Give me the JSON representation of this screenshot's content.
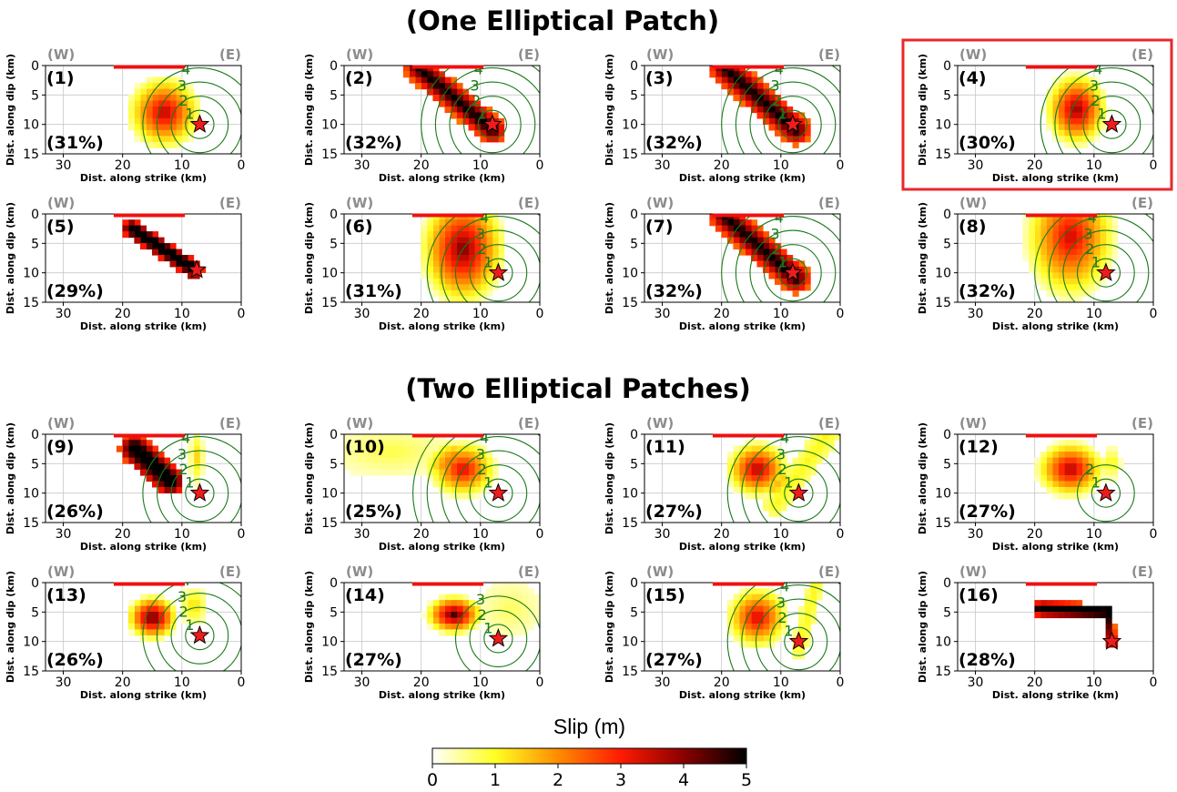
{
  "figure": {
    "section_titles": [
      "(One Elliptical Patch)",
      "(Two Elliptical Patches)"
    ],
    "highlight_color": "#e8282b",
    "colorbar": {
      "label": "Slip (m)",
      "ticks": [
        0,
        1,
        2,
        3,
        4,
        5
      ],
      "colors": [
        "#ffffff",
        "#ffff22",
        "#ff8c00",
        "#ff1a00",
        "#8a0000",
        "#000000"
      ]
    }
  },
  "chart_data": [
    {
      "type": "heatmap",
      "label": "(1)",
      "percent": "(31%)",
      "west": "(W)",
      "east": "(E)",
      "xlabel": "Dist. along strike (km)",
      "ylabel": "Dist. along dip (km)",
      "xlim": [
        33,
        0
      ],
      "ylim": [
        15,
        0
      ],
      "xticks": [
        30,
        20,
        10,
        0
      ],
      "yticks": [
        0,
        5,
        10,
        15
      ],
      "hypocenter": [
        7,
        10
      ],
      "contour_levels": [
        1,
        2,
        3,
        4
      ],
      "slip_model": {
        "patches": [
          {
            "type": "ellipse",
            "cx": 13,
            "cy": 8,
            "rx": 6.5,
            "ry": 6.5,
            "peak": 3.5
          }
        ]
      },
      "surface_rupture": [
        9.5,
        21.5
      ],
      "highlighted": false
    },
    {
      "type": "heatmap",
      "label": "(2)",
      "percent": "(32%)",
      "west": "(W)",
      "east": "(E)",
      "xlabel": "Dist. along strike (km)",
      "ylabel": "Dist. along dip (km)",
      "xlim": [
        33,
        0
      ],
      "ylim": [
        15,
        0
      ],
      "xticks": [
        30,
        20,
        10,
        0
      ],
      "yticks": [
        0,
        5,
        10,
        15
      ],
      "hypocenter": [
        8,
        10
      ],
      "contour_levels": [
        1,
        2,
        3,
        4,
        5
      ],
      "slip_model": {
        "patches": [
          {
            "type": "band",
            "x1": 20.5,
            "y1": 0.5,
            "x2": 8,
            "y2": 11,
            "w": 2.4,
            "peak": 5
          }
        ]
      },
      "surface_rupture": [
        9.5,
        21.5
      ],
      "highlighted": false
    },
    {
      "type": "heatmap",
      "label": "(3)",
      "percent": "(32%)",
      "west": "(W)",
      "east": "(E)",
      "xlabel": "Dist. along strike (km)",
      "ylabel": "Dist. along dip (km)",
      "xlim": [
        33,
        0
      ],
      "ylim": [
        15,
        0
      ],
      "xticks": [
        30,
        20,
        10,
        0
      ],
      "yticks": [
        0,
        5,
        10,
        15
      ],
      "hypocenter": [
        8,
        10
      ],
      "contour_levels": [
        1,
        2,
        3,
        4,
        5
      ],
      "slip_model": {
        "patches": [
          {
            "type": "band",
            "x1": 19.5,
            "y1": 0.5,
            "x2": 7.5,
            "y2": 11,
            "w": 2.6,
            "peak": 5
          }
        ]
      },
      "surface_rupture": [
        9.5,
        21.5
      ],
      "highlighted": false
    },
    {
      "type": "heatmap",
      "label": "(4)",
      "percent": "(30%)",
      "west": "(W)",
      "east": "(E)",
      "xlabel": "Dist. along strike (km)",
      "ylabel": "Dist. along dip (km)",
      "xlim": [
        33,
        0
      ],
      "ylim": [
        15,
        0
      ],
      "xticks": [
        30,
        20,
        10,
        0
      ],
      "yticks": [
        0,
        5,
        10,
        15
      ],
      "hypocenter": [
        7,
        10
      ],
      "contour_levels": [
        1,
        2,
        3,
        4,
        5
      ],
      "slip_model": {
        "patches": [
          {
            "type": "ellipse",
            "cx": 13,
            "cy": 7.5,
            "rx": 5.5,
            "ry": 6.5,
            "peak": 3.8
          }
        ]
      },
      "surface_rupture": [
        9.5,
        21.5
      ],
      "highlighted": true
    },
    {
      "type": "heatmap",
      "label": "(5)",
      "percent": "(29%)",
      "west": "(W)",
      "east": "(E)",
      "xlabel": "Dist. along strike (km)",
      "ylabel": "Dist. along dip (km)",
      "xlim": [
        33,
        0
      ],
      "ylim": [
        15,
        0
      ],
      "xticks": [
        30,
        20,
        10,
        0
      ],
      "yticks": [
        0,
        5,
        10,
        15
      ],
      "hypocenter": [
        7.5,
        9.5
      ],
      "contour_levels": [],
      "slip_model": {
        "patches": [
          {
            "type": "band",
            "x1": 18.5,
            "y1": 2.5,
            "x2": 8,
            "y2": 9.5,
            "w": 1.6,
            "peak": 6
          }
        ]
      },
      "surface_rupture": [
        9.5,
        21.5
      ],
      "highlighted": false
    },
    {
      "type": "heatmap",
      "label": "(6)",
      "percent": "(31%)",
      "west": "(W)",
      "east": "(E)",
      "xlabel": "Dist. along strike (km)",
      "ylabel": "Dist. along dip (km)",
      "xlim": [
        33,
        0
      ],
      "ylim": [
        15,
        0
      ],
      "xticks": [
        30,
        20,
        10,
        0
      ],
      "yticks": [
        0,
        5,
        10,
        15
      ],
      "hypocenter": [
        7,
        10
      ],
      "contour_levels": [
        1,
        2,
        3,
        4,
        5
      ],
      "slip_model": {
        "patches": [
          {
            "type": "ellipse",
            "cx": 13,
            "cy": 6,
            "rx": 7.5,
            "ry": 10,
            "peak": 4
          }
        ]
      },
      "surface_rupture": [
        9.5,
        21.5
      ],
      "highlighted": false
    },
    {
      "type": "heatmap",
      "label": "(7)",
      "percent": "(32%)",
      "west": "(W)",
      "east": "(E)",
      "xlabel": "Dist. along strike (km)",
      "ylabel": "Dist. along dip (km)",
      "xlim": [
        33,
        0
      ],
      "ylim": [
        15,
        0
      ],
      "xticks": [
        30,
        20,
        10,
        0
      ],
      "yticks": [
        0,
        5,
        10,
        15
      ],
      "hypocenter": [
        8,
        10
      ],
      "contour_levels": [
        1,
        2,
        3,
        4,
        5
      ],
      "slip_model": {
        "patches": [
          {
            "type": "band",
            "x1": 19.5,
            "y1": 0.5,
            "x2": 7.5,
            "y2": 11,
            "w": 2.6,
            "peak": 5
          }
        ]
      },
      "surface_rupture": [
        9.5,
        21.5
      ],
      "highlighted": false
    },
    {
      "type": "heatmap",
      "label": "(8)",
      "percent": "(32%)",
      "west": "(W)",
      "east": "(E)",
      "xlabel": "Dist. along strike (km)",
      "ylabel": "Dist. along dip (km)",
      "xlim": [
        33,
        0
      ],
      "ylim": [
        15,
        0
      ],
      "xticks": [
        30,
        20,
        10,
        0
      ],
      "yticks": [
        0,
        5,
        10,
        15
      ],
      "hypocenter": [
        8,
        10
      ],
      "contour_levels": [
        1,
        2,
        3,
        4,
        5
      ],
      "slip_model": {
        "patches": [
          {
            "type": "ellipse",
            "cx": 14,
            "cy": 4,
            "rx": 8,
            "ry": 11,
            "peak": 3.3
          }
        ]
      },
      "surface_rupture": [
        9.5,
        21.5
      ],
      "highlighted": false
    },
    {
      "type": "heatmap",
      "label": "(9)",
      "percent": "(26%)",
      "west": "(W)",
      "east": "(E)",
      "xlabel": "Dist. along strike (km)",
      "ylabel": "Dist. along dip (km)",
      "xlim": [
        33,
        0
      ],
      "ylim": [
        15,
        0
      ],
      "xticks": [
        30,
        20,
        10,
        0
      ],
      "yticks": [
        0,
        5,
        10,
        15
      ],
      "hypocenter": [
        7,
        10
      ],
      "contour_levels": [
        1,
        2,
        3,
        4
      ],
      "slip_model": {
        "patches": [
          {
            "type": "band",
            "x1": 18,
            "y1": 2.5,
            "x2": 12,
            "y2": 8,
            "w": 2.5,
            "peak": 6
          },
          {
            "type": "ellipse",
            "cx": 7.5,
            "cy": 4,
            "rx": 1.3,
            "ry": 5,
            "peak": 1.2
          }
        ]
      },
      "surface_rupture": [
        9.5,
        21.5
      ],
      "highlighted": false
    },
    {
      "type": "heatmap",
      "label": "(10)",
      "percent": "(25%)",
      "west": "(W)",
      "east": "(E)",
      "xlabel": "Dist. along strike (km)",
      "ylabel": "Dist. along dip (km)",
      "xlim": [
        33,
        0
      ],
      "ylim": [
        15,
        0
      ],
      "xticks": [
        30,
        20,
        10,
        0
      ],
      "yticks": [
        0,
        5,
        10,
        15
      ],
      "hypocenter": [
        7,
        10
      ],
      "contour_levels": [
        1,
        2,
        3,
        4,
        5,
        6
      ],
      "slip_model": {
        "patches": [
          {
            "type": "ellipse",
            "cx": 13,
            "cy": 6,
            "rx": 6,
            "ry": 5,
            "peak": 3.2
          },
          {
            "type": "ellipse",
            "cx": 25,
            "cy": 3,
            "rx": 11,
            "ry": 4.5,
            "peak": 0.6
          }
        ]
      },
      "surface_rupture": [
        9.5,
        21.5
      ],
      "highlighted": false
    },
    {
      "type": "heatmap",
      "label": "(11)",
      "percent": "(27%)",
      "west": "(W)",
      "east": "(E)",
      "xlabel": "Dist. along strike (km)",
      "ylabel": "Dist. along dip (km)",
      "xlim": [
        33,
        0
      ],
      "ylim": [
        15,
        0
      ],
      "xticks": [
        30,
        20,
        10,
        0
      ],
      "yticks": [
        0,
        5,
        10,
        15
      ],
      "hypocenter": [
        7,
        10
      ],
      "contour_levels": [
        1,
        2,
        3,
        4,
        5
      ],
      "slip_model": {
        "patches": [
          {
            "type": "ellipse",
            "cx": 14,
            "cy": 6,
            "rx": 5.5,
            "ry": 5,
            "peak": 3.6
          },
          {
            "type": "band",
            "x1": 11,
            "y1": 12,
            "x2": 2,
            "y2": 0,
            "w": 2,
            "peak": 0.9
          }
        ]
      },
      "surface_rupture": [
        9.5,
        21.5
      ],
      "highlighted": false
    },
    {
      "type": "heatmap",
      "label": "(12)",
      "percent": "(27%)",
      "west": "(W)",
      "east": "(E)",
      "xlabel": "Dist. along strike (km)",
      "ylabel": "Dist. along dip (km)",
      "xlim": [
        33,
        0
      ],
      "ylim": [
        15,
        0
      ],
      "xticks": [
        30,
        20,
        10,
        0
      ],
      "yticks": [
        0,
        5,
        10,
        15
      ],
      "hypocenter": [
        8,
        10
      ],
      "contour_levels": [
        1,
        2
      ],
      "slip_model": {
        "patches": [
          {
            "type": "ellipse",
            "cx": 14,
            "cy": 6,
            "rx": 6,
            "ry": 5,
            "peak": 3.6
          },
          {
            "type": "ellipse",
            "cx": 7,
            "cy": 5,
            "rx": 1.6,
            "ry": 3,
            "peak": 1
          }
        ]
      },
      "surface_rupture": [
        9.5,
        21.5
      ],
      "highlighted": false
    },
    {
      "type": "heatmap",
      "label": "(13)",
      "percent": "(26%)",
      "west": "(W)",
      "east": "(E)",
      "xlabel": "Dist. along strike (km)",
      "ylabel": "Dist. along dip (km)",
      "xlim": [
        33,
        0
      ],
      "ylim": [
        15,
        0
      ],
      "xticks": [
        30,
        20,
        10,
        0
      ],
      "yticks": [
        0,
        5,
        10,
        15
      ],
      "hypocenter": [
        7,
        9
      ],
      "contour_levels": [
        1,
        2,
        3,
        4
      ],
      "slip_model": {
        "patches": [
          {
            "type": "ellipse",
            "cx": 15,
            "cy": 6,
            "rx": 4.5,
            "ry": 4,
            "peak": 4.3
          },
          {
            "type": "ellipse",
            "cx": 8,
            "cy": 4,
            "rx": 2.5,
            "ry": 3.5,
            "peak": 1.2
          }
        ]
      },
      "surface_rupture": [
        9.5,
        21.5
      ],
      "highlighted": false
    },
    {
      "type": "heatmap",
      "label": "(14)",
      "percent": "(27%)",
      "west": "(W)",
      "east": "(E)",
      "xlabel": "Dist. along strike (km)",
      "ylabel": "Dist. along dip (km)",
      "xlim": [
        33,
        0
      ],
      "ylim": [
        15,
        0
      ],
      "xticks": [
        30,
        20,
        10,
        0
      ],
      "yticks": [
        0,
        5,
        10,
        15
      ],
      "hypocenter": [
        7,
        9.5
      ],
      "contour_levels": [
        1,
        2,
        3
      ],
      "slip_model": {
        "patches": [
          {
            "type": "ellipse",
            "cx": 14.5,
            "cy": 5.5,
            "rx": 5,
            "ry": 3.5,
            "peak": 4.3
          },
          {
            "type": "ellipse",
            "cx": 5,
            "cy": 4.5,
            "rx": 5.5,
            "ry": 5,
            "peak": 0.5
          }
        ]
      },
      "surface_rupture": [
        9.5,
        21.5
      ],
      "highlighted": false
    },
    {
      "type": "heatmap",
      "label": "(15)",
      "percent": "(27%)",
      "west": "(W)",
      "east": "(E)",
      "xlabel": "Dist. along strike (km)",
      "ylabel": "Dist. along dip (km)",
      "xlim": [
        33,
        0
      ],
      "ylim": [
        15,
        0
      ],
      "xticks": [
        30,
        20,
        10,
        0
      ],
      "yticks": [
        0,
        5,
        10,
        15
      ],
      "hypocenter": [
        7,
        10
      ],
      "contour_levels": [
        1,
        2,
        3,
        4,
        5
      ],
      "slip_model": {
        "patches": [
          {
            "type": "ellipse",
            "cx": 14,
            "cy": 6,
            "rx": 5.5,
            "ry": 5.5,
            "peak": 3.3
          },
          {
            "type": "band",
            "x1": 7,
            "y1": 11.5,
            "x2": 4,
            "y2": 0,
            "w": 1.3,
            "peak": 0.9
          }
        ]
      },
      "surface_rupture": [
        9.5,
        21.5
      ],
      "highlighted": false
    },
    {
      "type": "heatmap",
      "label": "(16)",
      "percent": "(28%)",
      "west": "(W)",
      "east": "(E)",
      "xlabel": "Dist. along strike (km)",
      "ylabel": "Dist. along dip (km)",
      "xlim": [
        33,
        0
      ],
      "ylim": [
        15,
        0
      ],
      "xticks": [
        30,
        20,
        10,
        0
      ],
      "yticks": [
        0,
        5,
        10,
        15
      ],
      "hypocenter": [
        7,
        10
      ],
      "contour_levels": [],
      "slip_model": {
        "patches": [
          {
            "type": "band",
            "x1": 19,
            "y1": 4.5,
            "x2": 8,
            "y2": 5,
            "w": 1.3,
            "peak": 6
          },
          {
            "type": "band",
            "x1": 7.5,
            "y1": 5,
            "x2": 7,
            "y2": 10.5,
            "w": 0.8,
            "peak": 5
          }
        ]
      },
      "surface_rupture": [
        9.5,
        21.5
      ],
      "highlighted": false
    }
  ]
}
